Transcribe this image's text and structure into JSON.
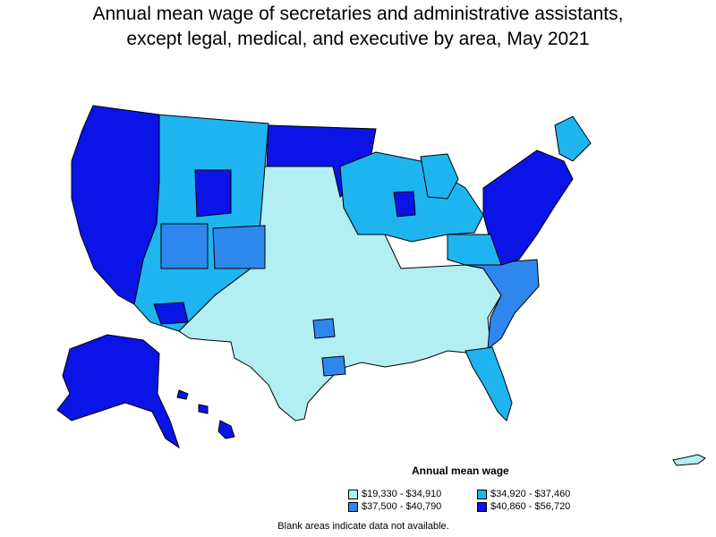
{
  "title": "Annual mean wage of secretaries and administrative assistants, except legal, medical, and executive by area, May 2021",
  "legend": {
    "title": "Annual mean wage",
    "items": [
      {
        "label": "$19,330 - $34,910",
        "color": "#b3eef2"
      },
      {
        "label": "$34,920 - $37,460",
        "color": "#1eb4f0"
      },
      {
        "label": "$37,500 - $40,790",
        "color": "#2e87ec"
      },
      {
        "label": "$40,860 - $56,720",
        "color": "#0a14e6"
      }
    ]
  },
  "note": "Blank areas indicate data not available."
}
